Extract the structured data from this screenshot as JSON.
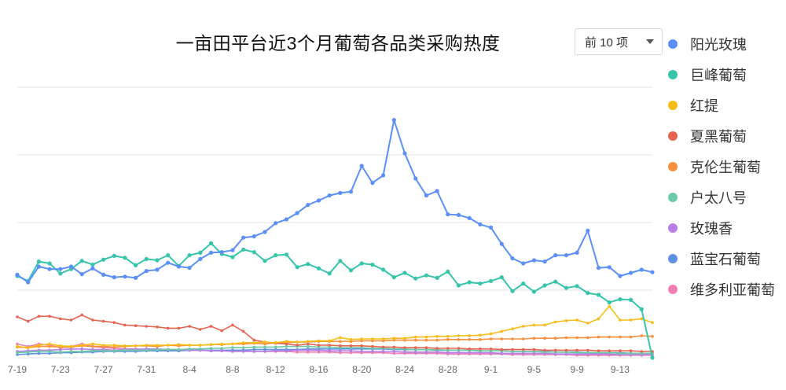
{
  "title": "一亩田平台近3个月葡萄各品类采购热度",
  "dropdown": {
    "selected": "前 10 项"
  },
  "chart_data": {
    "type": "line",
    "title": "一亩田平台近3个月葡萄各品类采购热度",
    "x": [
      "7-19",
      "7-20",
      "7-21",
      "7-22",
      "7-23",
      "7-24",
      "7-25",
      "7-26",
      "7-27",
      "7-28",
      "7-29",
      "7-30",
      "7-31",
      "8-1",
      "8-2",
      "8-3",
      "8-4",
      "8-5",
      "8-6",
      "8-7",
      "8-8",
      "8-9",
      "8-10",
      "8-11",
      "8-12",
      "8-13",
      "8-14",
      "8-15",
      "8-16",
      "8-17",
      "8-18",
      "8-19",
      "8-20",
      "8-21",
      "8-22",
      "8-23",
      "8-24",
      "8-25",
      "8-26",
      "8-27",
      "8-28",
      "8-29",
      "8-30",
      "8-31",
      "9-1",
      "9-2",
      "9-3",
      "9-4",
      "9-5",
      "9-6",
      "9-7",
      "9-8",
      "9-9",
      "9-10",
      "9-11",
      "9-12",
      "9-13",
      "9-14",
      "9-15",
      "9-16"
    ],
    "xticks": [
      "7-19",
      "7-23",
      "7-27",
      "7-31",
      "8-4",
      "8-8",
      "8-12",
      "8-16",
      "8-20",
      "8-24",
      "8-28",
      "9-1",
      "9-5",
      "9-9",
      "9-13"
    ],
    "ylim": [
      0,
      4.3
    ],
    "grid": true,
    "legend_position": "right",
    "series": [
      {
        "name": "阳光玫瑰",
        "color": "#5b8ff9",
        "values": [
          1.32,
          1.2,
          1.45,
          1.41,
          1.41,
          1.45,
          1.33,
          1.42,
          1.32,
          1.28,
          1.29,
          1.27,
          1.38,
          1.4,
          1.51,
          1.45,
          1.43,
          1.57,
          1.67,
          1.68,
          1.71,
          1.91,
          1.93,
          2.0,
          2.14,
          2.2,
          2.3,
          2.43,
          2.5,
          2.58,
          2.62,
          2.64,
          3.05,
          2.78,
          2.9,
          3.78,
          3.25,
          2.85,
          2.58,
          2.65,
          2.28,
          2.27,
          2.22,
          2.12,
          2.07,
          1.81,
          1.58,
          1.5,
          1.55,
          1.53,
          1.63,
          1.63,
          1.67,
          2.02,
          1.43,
          1.44,
          1.3,
          1.35,
          1.4,
          1.36
        ]
      },
      {
        "name": "巨峰葡萄",
        "color": "#36c5ab",
        "values": [
          1.3,
          1.22,
          1.53,
          1.5,
          1.34,
          1.41,
          1.54,
          1.48,
          1.56,
          1.62,
          1.59,
          1.47,
          1.57,
          1.55,
          1.63,
          1.46,
          1.63,
          1.67,
          1.82,
          1.65,
          1.6,
          1.72,
          1.68,
          1.54,
          1.63,
          1.64,
          1.44,
          1.49,
          1.42,
          1.34,
          1.54,
          1.39,
          1.5,
          1.48,
          1.4,
          1.28,
          1.35,
          1.26,
          1.31,
          1.27,
          1.37,
          1.15,
          1.2,
          1.18,
          1.22,
          1.28,
          1.06,
          1.18,
          1.05,
          1.15,
          1.21,
          1.11,
          1.14,
          1.03,
          1.0,
          0.88,
          0.93,
          0.92,
          0.77,
          0.0
        ]
      },
      {
        "name": "红提",
        "color": "#f6bd16",
        "values": [
          0.18,
          0.16,
          0.2,
          0.22,
          0.19,
          0.18,
          0.2,
          0.22,
          0.2,
          0.2,
          0.19,
          0.19,
          0.2,
          0.2,
          0.2,
          0.21,
          0.2,
          0.2,
          0.21,
          0.22,
          0.22,
          0.24,
          0.24,
          0.25,
          0.24,
          0.26,
          0.25,
          0.26,
          0.27,
          0.27,
          0.32,
          0.29,
          0.3,
          0.3,
          0.3,
          0.31,
          0.31,
          0.33,
          0.33,
          0.34,
          0.34,
          0.35,
          0.35,
          0.36,
          0.38,
          0.42,
          0.46,
          0.5,
          0.52,
          0.52,
          0.57,
          0.59,
          0.6,
          0.55,
          0.62,
          0.82,
          0.6,
          0.6,
          0.62,
          0.56
        ]
      },
      {
        "name": "夏黑葡萄",
        "color": "#e86452",
        "values": [
          0.65,
          0.58,
          0.66,
          0.66,
          0.62,
          0.6,
          0.68,
          0.6,
          0.58,
          0.56,
          0.52,
          0.51,
          0.5,
          0.49,
          0.47,
          0.47,
          0.5,
          0.45,
          0.5,
          0.43,
          0.52,
          0.42,
          0.28,
          0.25,
          0.23,
          0.22,
          0.2,
          0.22,
          0.2,
          0.2,
          0.19,
          0.19,
          0.19,
          0.18,
          0.17,
          0.17,
          0.16,
          0.16,
          0.16,
          0.15,
          0.15,
          0.15,
          0.14,
          0.14,
          0.14,
          0.13,
          0.13,
          0.13,
          0.13,
          0.12,
          0.12,
          0.12,
          0.12,
          0.12,
          0.11,
          0.11,
          0.11,
          0.11,
          0.1,
          0.1
        ]
      },
      {
        "name": "克伦生葡萄",
        "color": "#f6903d",
        "values": [
          0.17,
          0.16,
          0.18,
          0.18,
          0.17,
          0.17,
          0.19,
          0.18,
          0.18,
          0.17,
          0.18,
          0.19,
          0.19,
          0.18,
          0.2,
          0.19,
          0.2,
          0.2,
          0.21,
          0.21,
          0.22,
          0.22,
          0.23,
          0.22,
          0.24,
          0.24,
          0.25,
          0.25,
          0.26,
          0.26,
          0.26,
          0.26,
          0.27,
          0.27,
          0.27,
          0.28,
          0.28,
          0.28,
          0.28,
          0.28,
          0.29,
          0.29,
          0.29,
          0.29,
          0.3,
          0.3,
          0.3,
          0.3,
          0.31,
          0.31,
          0.31,
          0.32,
          0.32,
          0.32,
          0.33,
          0.33,
          0.33,
          0.33,
          0.35,
          0.34
        ]
      },
      {
        "name": "户太八号",
        "color": "#6dc8a8",
        "values": [
          0.08,
          0.09,
          0.1,
          0.1,
          0.09,
          0.1,
          0.1,
          0.11,
          0.11,
          0.11,
          0.12,
          0.12,
          0.12,
          0.13,
          0.13,
          0.13,
          0.14,
          0.14,
          0.15,
          0.15,
          0.16,
          0.16,
          0.17,
          0.17,
          0.17,
          0.18,
          0.18,
          0.18,
          0.17,
          0.17,
          0.16,
          0.16,
          0.16,
          0.15,
          0.15,
          0.14,
          0.14,
          0.13,
          0.13,
          0.13,
          0.12,
          0.12,
          0.12,
          0.11,
          0.11,
          0.11,
          0.1,
          0.1,
          0.1,
          0.09,
          0.09,
          0.09,
          0.08,
          0.08,
          0.08,
          0.08,
          0.07,
          0.07,
          0.07,
          0.07
        ]
      },
      {
        "name": "玫瑰香",
        "color": "#b77ee6",
        "values": [
          0.1,
          0.11,
          0.12,
          0.12,
          0.13,
          0.14,
          0.14,
          0.13,
          0.13,
          0.12,
          0.13,
          0.13,
          0.14,
          0.14,
          0.13,
          0.13,
          0.12,
          0.12,
          0.11,
          0.11,
          0.1,
          0.1,
          0.1,
          0.1,
          0.11,
          0.11,
          0.12,
          0.12,
          0.12,
          0.11,
          0.11,
          0.11,
          0.1,
          0.1,
          0.1,
          0.1,
          0.09,
          0.09,
          0.09,
          0.09,
          0.08,
          0.08,
          0.08,
          0.08,
          0.08,
          0.07,
          0.07,
          0.07,
          0.07,
          0.07,
          0.06,
          0.06,
          0.06,
          0.06,
          0.06,
          0.06,
          0.05,
          0.05,
          0.05,
          0.05
        ]
      },
      {
        "name": "蓝宝石葡萄",
        "color": "#5e92e0",
        "values": [
          0.05,
          0.06,
          0.07,
          0.07,
          0.08,
          0.08,
          0.09,
          0.09,
          0.1,
          0.1,
          0.1,
          0.1,
          0.11,
          0.11,
          0.11,
          0.11,
          0.12,
          0.12,
          0.12,
          0.12,
          0.12,
          0.12,
          0.13,
          0.13,
          0.13,
          0.13,
          0.13,
          0.14,
          0.14,
          0.14,
          0.14,
          0.14,
          0.14,
          0.14,
          0.14,
          0.13,
          0.13,
          0.13,
          0.13,
          0.12,
          0.12,
          0.12,
          0.12,
          0.11,
          0.11,
          0.11,
          0.1,
          0.1,
          0.1,
          0.1,
          0.09,
          0.09,
          0.09,
          0.08,
          0.08,
          0.08,
          0.08,
          0.07,
          0.07,
          0.07
        ]
      },
      {
        "name": "维多利亚葡萄",
        "color": "#ef7fb4",
        "values": [
          0.22,
          0.18,
          0.22,
          0.2,
          0.16,
          0.18,
          0.22,
          0.18,
          0.16,
          0.15,
          0.14,
          0.14,
          0.13,
          0.13,
          0.13,
          0.12,
          0.12,
          0.12,
          0.11,
          0.11,
          0.11,
          0.11,
          0.1,
          0.1,
          0.1,
          0.1,
          0.09,
          0.09,
          0.09,
          0.09,
          0.08,
          0.08,
          0.08,
          0.08,
          0.08,
          0.07,
          0.07,
          0.07,
          0.07,
          0.07,
          0.06,
          0.06,
          0.06,
          0.06,
          0.06,
          0.06,
          0.05,
          0.05,
          0.05,
          0.05,
          0.05,
          0.05,
          0.04,
          0.04,
          0.04,
          0.04,
          0.04,
          0.04,
          0.04,
          0.04
        ]
      }
    ]
  }
}
